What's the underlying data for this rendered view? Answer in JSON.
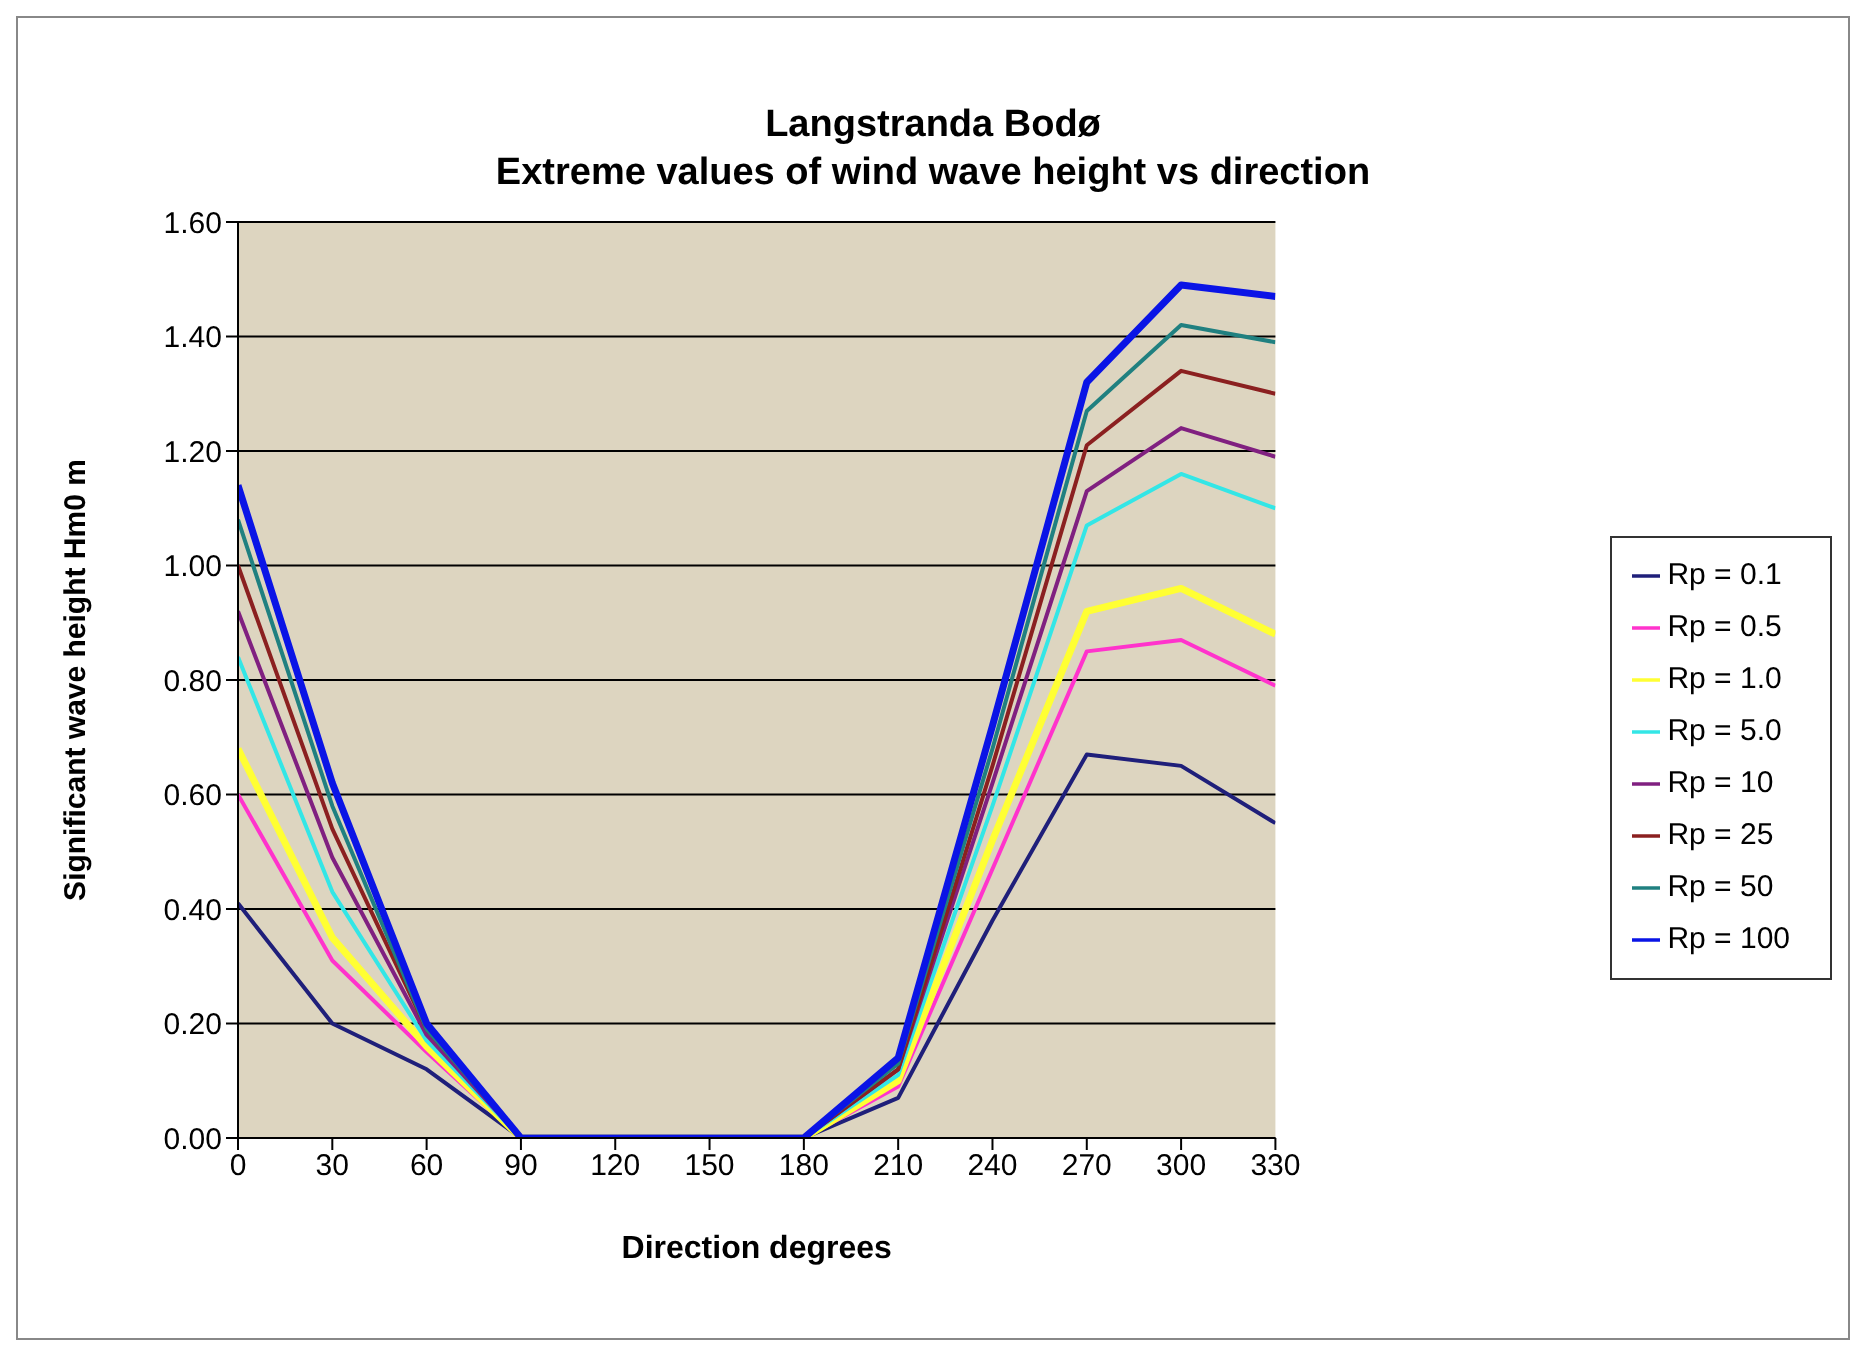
{
  "chart_data": {
    "type": "line",
    "title": "Langstranda Bodø",
    "subtitle": "Extreme values of wind wave height vs direction",
    "xlabel": "Direction degrees",
    "ylabel": "Significant  wave height Hm0 m",
    "x": [
      0,
      30,
      60,
      90,
      120,
      150,
      180,
      210,
      240,
      270,
      300,
      330
    ],
    "xlim": [
      0,
      330
    ],
    "xticks": [
      0,
      30,
      60,
      90,
      120,
      150,
      180,
      210,
      240,
      270,
      300,
      330
    ],
    "ylim": [
      0,
      1.6
    ],
    "yticks": [
      {
        "value": 0,
        "label": "0.00"
      },
      {
        "value": 0.2,
        "label": "0.20"
      },
      {
        "value": 0.4,
        "label": "0.40"
      },
      {
        "value": 0.6,
        "label": "0.60"
      },
      {
        "value": 0.8,
        "label": "0.80"
      },
      {
        "value": 1,
        "label": "1.00"
      },
      {
        "value": 1.2,
        "label": "1.20"
      },
      {
        "value": 1.4,
        "label": "1.40"
      },
      {
        "value": 1.6,
        "label": "1.60"
      }
    ],
    "grid": "y",
    "legend": "right",
    "marker": "none",
    "line_style": "solid",
    "series": [
      {
        "name": "Rp = 0.1",
        "color": "#1f1f7a",
        "values": [
          0.41,
          0.2,
          0.12,
          0,
          0,
          0,
          0,
          0.07,
          0.38,
          0.67,
          0.65,
          0.55
        ]
      },
      {
        "name": "Rp = 0.5",
        "color": "#ff33cc",
        "values": [
          0.6,
          0.31,
          0.15,
          0,
          0,
          0,
          0,
          0.09,
          0.47,
          0.85,
          0.87,
          0.79
        ]
      },
      {
        "name": "Rp = 1.0",
        "color": "#ffff33",
        "values": [
          0.68,
          0.35,
          0.16,
          0,
          0,
          0,
          0,
          0.1,
          0.52,
          0.92,
          0.96,
          0.88
        ]
      },
      {
        "name": "Rp = 5.0",
        "color": "#33e6e6",
        "values": [
          0.84,
          0.43,
          0.17,
          0,
          0,
          0,
          0,
          0.11,
          0.58,
          1.07,
          1.16,
          1.1
        ]
      },
      {
        "name": "Rp = 10",
        "color": "#802080",
        "values": [
          0.92,
          0.49,
          0.18,
          0,
          0,
          0,
          0,
          0.12,
          0.62,
          1.13,
          1.24,
          1.19
        ]
      },
      {
        "name": "Rp = 25",
        "color": "#8b2020",
        "values": [
          1.0,
          0.54,
          0.19,
          0,
          0,
          0,
          0,
          0.12,
          0.65,
          1.21,
          1.34,
          1.3
        ]
      },
      {
        "name": "Rp = 50",
        "color": "#208080",
        "values": [
          1.08,
          0.58,
          0.19,
          0,
          0,
          0,
          0,
          0.13,
          0.68,
          1.27,
          1.42,
          1.39
        ]
      },
      {
        "name": "Rp = 100",
        "color": "#0a14e6",
        "values": [
          1.14,
          0.62,
          0.2,
          0,
          0,
          0,
          0,
          0.14,
          0.72,
          1.32,
          1.49,
          1.47
        ]
      }
    ]
  }
}
